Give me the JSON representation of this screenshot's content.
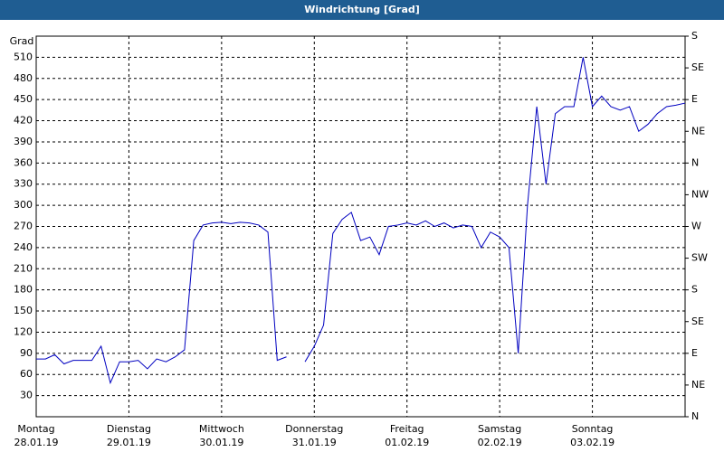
{
  "chart_data": {
    "type": "line",
    "title": "Windrichtung [Grad]",
    "y_label": "Grad",
    "x": [
      0,
      0.1,
      0.2,
      0.3,
      0.4,
      0.5,
      0.6,
      0.7,
      0.8,
      0.9,
      1,
      1.1,
      1.2,
      1.3,
      1.4,
      1.5,
      1.6,
      1.7,
      1.8,
      1.9,
      2,
      2.1,
      2.2,
      2.3,
      2.4,
      2.5,
      2.6,
      2.7,
      2.8,
      2.9,
      3,
      3.1,
      3.2,
      3.3,
      3.4,
      3.5,
      3.6,
      3.7,
      3.8,
      3.9,
      4,
      4.1,
      4.2,
      4.3,
      4.4,
      4.5,
      4.6,
      4.7,
      4.8,
      4.9,
      5,
      5.1,
      5.2,
      5.3,
      5.4,
      5.5,
      5.6,
      5.7,
      5.8,
      5.9,
      6,
      6.1,
      6.2,
      6.3,
      6.4,
      6.5,
      6.6,
      6.7,
      6.8,
      6.9,
      7
    ],
    "series": [
      {
        "name": "Windrichtung",
        "color": "#0000c0",
        "values": [
          82,
          82,
          88,
          75,
          80,
          80,
          80,
          100,
          48,
          78,
          78,
          80,
          68,
          82,
          78,
          85,
          95,
          250,
          272,
          275,
          276,
          274,
          276,
          275,
          272,
          262,
          80,
          85,
          null,
          78,
          100,
          130,
          260,
          280,
          290,
          250,
          255,
          230,
          270,
          272,
          275,
          272,
          278,
          270,
          275,
          268,
          272,
          270,
          240,
          262,
          255,
          240,
          90,
          300,
          440,
          330,
          430,
          440,
          440,
          510,
          440,
          455,
          440,
          435,
          440,
          405,
          415,
          430,
          440,
          442,
          445
        ]
      }
    ],
    "xlim": [
      0,
      7
    ],
    "xticks": [
      {
        "value": 0,
        "label": "28.01.19"
      },
      {
        "value": 1,
        "label": "29.01.19"
      },
      {
        "value": 2,
        "label": "30.01.19"
      },
      {
        "value": 3,
        "label": "31.01.19"
      },
      {
        "value": 4,
        "label": "01.02.19"
      },
      {
        "value": 5,
        "label": "02.02.19"
      },
      {
        "value": 6,
        "label": "03.02.19"
      }
    ],
    "xtick_days": [
      "Montag",
      "Dienstag",
      "Mittwoch",
      "Donnerstag",
      "Freitag",
      "Samstag",
      "Sonntag"
    ],
    "ylim": [
      0,
      540
    ],
    "yticks": [
      30,
      60,
      90,
      120,
      150,
      180,
      210,
      240,
      270,
      300,
      330,
      360,
      390,
      420,
      450,
      480,
      510
    ],
    "y2lim": [
      0,
      540
    ],
    "y2ticks": [
      {
        "value": 0,
        "label": "N"
      },
      {
        "value": 45,
        "label": "NE"
      },
      {
        "value": 90,
        "label": "E"
      },
      {
        "value": 135,
        "label": "SE"
      },
      {
        "value": 180,
        "label": "S"
      },
      {
        "value": 225,
        "label": "SW"
      },
      {
        "value": 270,
        "label": "W"
      },
      {
        "value": 315,
        "label": "NW"
      },
      {
        "value": 360,
        "label": "N"
      },
      {
        "value": 405,
        "label": "NE"
      },
      {
        "value": 450,
        "label": "E"
      },
      {
        "value": 495,
        "label": "SE"
      },
      {
        "value": 540,
        "label": "S"
      }
    ],
    "grid": true
  }
}
